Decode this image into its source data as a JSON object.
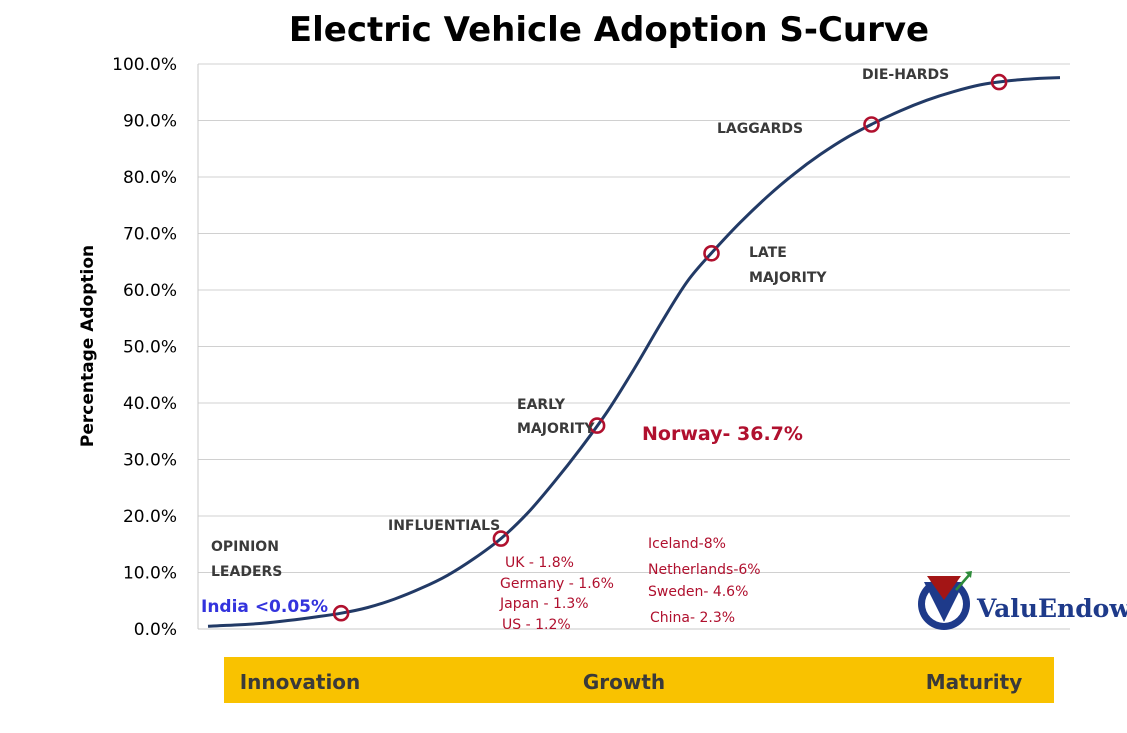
{
  "chart_data": {
    "type": "line",
    "title": "Electric Vehicle Adoption S-Curve",
    "ylabel": "Percentage Adoption",
    "xlabel": "",
    "ylim": [
      0,
      100
    ],
    "y_ticks": [
      "0.0%",
      "10.0%",
      "20.0%",
      "30.0%",
      "40.0%",
      "50.0%",
      "60.0%",
      "70.0%",
      "80.0%",
      "90.0%",
      "100.0%"
    ],
    "grid": true,
    "series": [
      {
        "values": [
          0.5,
          0.7,
          1.0,
          1.5,
          2.1,
          2.8,
          3.8,
          5.3,
          7.2,
          9.5,
          12.5,
          16.0,
          20.5,
          26.0,
          32.0,
          38.5,
          46.0,
          54.0,
          61.5,
          67.0,
          72.0,
          76.5,
          80.5,
          84.0,
          87.0,
          89.5,
          91.7,
          93.6,
          95.1,
          96.3,
          97.0,
          97.4,
          97.6
        ]
      }
    ],
    "markers": [
      {
        "label": "",
        "value": 2.8
      },
      {
        "label": "INFLUENTIALS",
        "value": 16.0
      },
      {
        "label": "EARLY MAJORITY",
        "value": 36.0
      },
      {
        "label": "LATE MAJORITY",
        "value": 66.5
      },
      {
        "label": "LAGGARDS",
        "value": 89.3
      },
      {
        "label": "DIE-HARDS",
        "value": 96.8
      }
    ],
    "stage_labels": {
      "opinion_leaders_1": "OPINION",
      "opinion_leaders_2": "LEADERS",
      "influentials": "INFLUENTIALS",
      "early_majority_1": "EARLY",
      "early_majority_2": "MAJORITY",
      "late_majority_1": "LATE",
      "late_majority_2": "MAJORITY",
      "laggards": "LAGGARDS",
      "die_hards": "DIE-HARDS"
    },
    "annotations": {
      "india": "India <0.05%",
      "norway": "Norway- 36.7%",
      "group_1": [
        "UK - 1.8%",
        "Germany - 1.6%",
        "Japan - 1.3%",
        "US - 1.2%"
      ],
      "group_2": [
        "Iceland-8%",
        "Netherlands-6%",
        "Sweden- 4.6%",
        "China- 2.3%"
      ]
    },
    "phases": [
      "Innovation",
      "Growth",
      "Maturity"
    ]
  },
  "logo": {
    "text": "ValuEndow",
    "colors": {
      "blue": "#1e3a8a",
      "red": "#a31515",
      "green": "#2e8b3a"
    }
  },
  "colors": {
    "curve": "#223a66",
    "marker": "#b0102e",
    "phase_band": "#f9c200",
    "india": "#3333dd"
  }
}
